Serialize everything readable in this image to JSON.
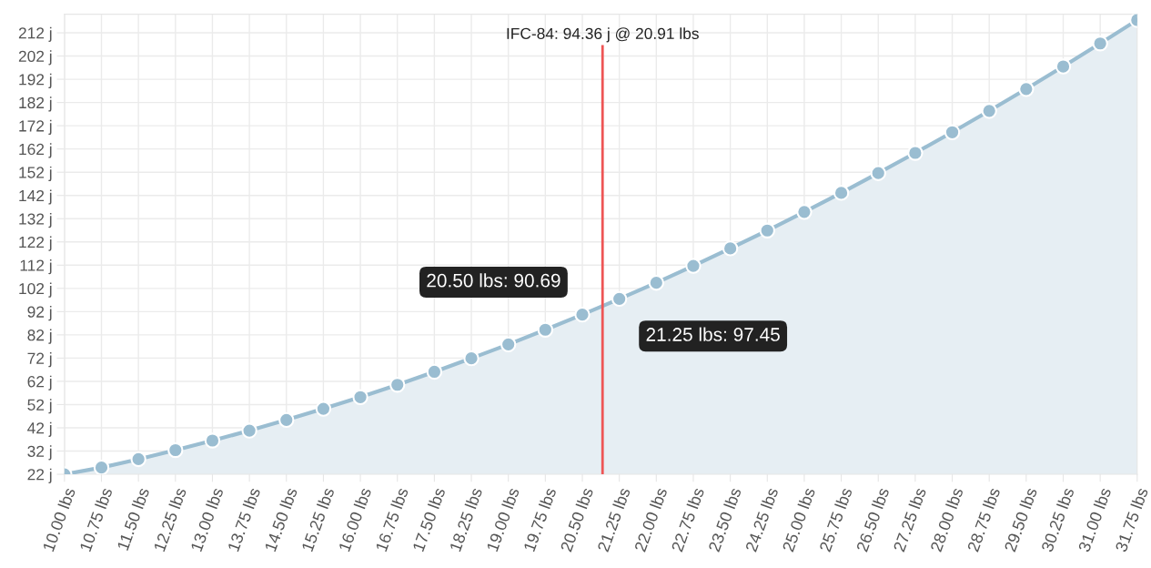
{
  "chart_data": {
    "type": "area",
    "x": [
      10,
      10.75,
      11.5,
      12.25,
      13,
      13.75,
      14.5,
      15.25,
      16,
      16.75,
      17.5,
      18.25,
      19,
      19.75,
      20.5,
      21.25,
      22,
      22.75,
      23.5,
      24.25,
      25,
      25.75,
      26.5,
      27.25,
      28,
      28.75,
      29.5,
      30.25,
      31,
      31.75
    ],
    "series": [
      {
        "color": "#9abdd1",
        "values": [
          22,
          24.9,
          28.5,
          32.4,
          36.5,
          40.8,
          45.4,
          50.2,
          55.2,
          60.5,
          66.1,
          71.9,
          77.9,
          84.2,
          90.7,
          97.5,
          104.4,
          111.7,
          119.2,
          126.9,
          134.9,
          143.1,
          151.6,
          160.3,
          169.2,
          178.4,
          187.8,
          197.5,
          207.4,
          217.5
        ]
      }
    ],
    "xlim": [
      10,
      31.75
    ],
    "xticks": [
      {
        "value": 10,
        "label": "10.00 lbs"
      },
      {
        "value": 10.75,
        "label": "10.75 lbs"
      },
      {
        "value": 11.5,
        "label": "11.50 lbs"
      },
      {
        "value": 12.25,
        "label": "12.25 lbs"
      },
      {
        "value": 13,
        "label": "13.00 lbs"
      },
      {
        "value": 13.75,
        "label": "13.75 lbs"
      },
      {
        "value": 14.5,
        "label": "14.50 lbs"
      },
      {
        "value": 15.25,
        "label": "15.25 lbs"
      },
      {
        "value": 16,
        "label": "16.00 lbs"
      },
      {
        "value": 16.75,
        "label": "16.75 lbs"
      },
      {
        "value": 17.5,
        "label": "17.50 lbs"
      },
      {
        "value": 18.25,
        "label": "18.25 lbs"
      },
      {
        "value": 19,
        "label": "19.00 lbs"
      },
      {
        "value": 19.75,
        "label": "19.75 lbs"
      },
      {
        "value": 20.5,
        "label": "20.50 lbs"
      },
      {
        "value": 21.25,
        "label": "21.25 lbs"
      },
      {
        "value": 22,
        "label": "22.00 lbs"
      },
      {
        "value": 22.75,
        "label": "22.75 lbs"
      },
      {
        "value": 23.5,
        "label": "23.50 lbs"
      },
      {
        "value": 24.25,
        "label": "24.25 lbs"
      },
      {
        "value": 25,
        "label": "25.00 lbs"
      },
      {
        "value": 25.75,
        "label": "25.75 lbs"
      },
      {
        "value": 26.5,
        "label": "26.50 lbs"
      },
      {
        "value": 27.25,
        "label": "27.25 lbs"
      },
      {
        "value": 28,
        "label": "28.00 lbs"
      },
      {
        "value": 28.75,
        "label": "28.75 lbs"
      },
      {
        "value": 29.5,
        "label": "29.50 lbs"
      },
      {
        "value": 30.25,
        "label": "30.25 lbs"
      },
      {
        "value": 31,
        "label": "31.00 lbs"
      },
      {
        "value": 31.75,
        "label": "31.75 lbs"
      }
    ],
    "ylim": [
      22,
      220
    ],
    "yticks": [
      {
        "value": 22,
        "label": "22 j"
      },
      {
        "value": 32,
        "label": "32 j"
      },
      {
        "value": 42,
        "label": "42 j"
      },
      {
        "value": 52,
        "label": "52 j"
      },
      {
        "value": 62,
        "label": "62 j"
      },
      {
        "value": 72,
        "label": "72 j"
      },
      {
        "value": 82,
        "label": "82 j"
      },
      {
        "value": 92,
        "label": "92 j"
      },
      {
        "value": 102,
        "label": "102 j"
      },
      {
        "value": 112,
        "label": "112 j"
      },
      {
        "value": 122,
        "label": "122 j"
      },
      {
        "value": 132,
        "label": "132 j"
      },
      {
        "value": 142,
        "label": "142 j"
      },
      {
        "value": 152,
        "label": "152 j"
      },
      {
        "value": 162,
        "label": "162 j"
      },
      {
        "value": 172,
        "label": "172 j"
      },
      {
        "value": 182,
        "label": "182 j"
      },
      {
        "value": 192,
        "label": "192 j"
      },
      {
        "value": 202,
        "label": "202 j"
      },
      {
        "value": 212,
        "label": "212 j"
      }
    ],
    "ref_lines": [
      {
        "axis": "x",
        "value": 20.91,
        "label": "IFC-84: 94.36 j @ 20.91 lbs",
        "color": "#ee5555"
      }
    ],
    "annotations": [
      {
        "text": "20.50 lbs: 90.69",
        "x": 20.5,
        "y": 90.69
      },
      {
        "text": "21.25 lbs: 97.45",
        "x": 21.25,
        "y": 97.45
      }
    ],
    "grid": true,
    "marker": "circle",
    "legend": false
  }
}
